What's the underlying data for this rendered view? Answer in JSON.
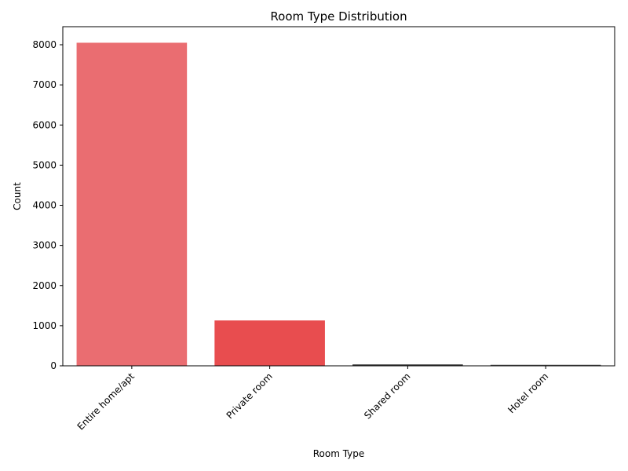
{
  "chart_data": {
    "type": "bar",
    "title": "Room Type Distribution",
    "xlabel": "Room Type",
    "ylabel": "Count",
    "categories": [
      "Entire home/apt",
      "Private room",
      "Shared room",
      "Hotel room"
    ],
    "values": [
      8050,
      1130,
      35,
      25
    ],
    "colors": [
      "#ea6d71",
      "#e84d4f",
      "#3c3c3c",
      "#555555"
    ],
    "ylim": [
      0,
      8450
    ],
    "yticks": [
      0,
      1000,
      2000,
      3000,
      4000,
      5000,
      6000,
      7000,
      8000
    ],
    "grid": false,
    "legend": "none"
  }
}
